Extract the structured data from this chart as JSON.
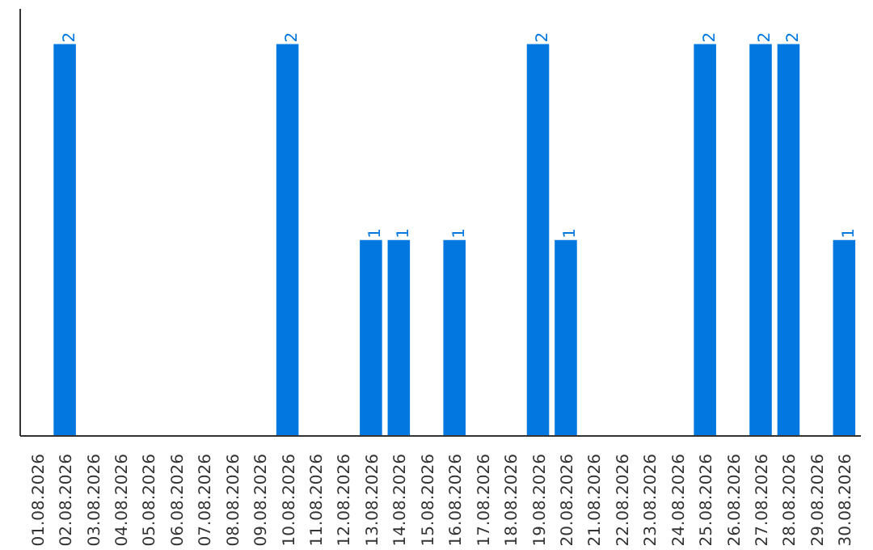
{
  "chart_data": {
    "type": "bar",
    "categories": [
      "01.08.2026",
      "02.08.2026",
      "03.08.2026",
      "04.08.2026",
      "05.08.2026",
      "06.08.2026",
      "07.08.2026",
      "08.08.2026",
      "09.08.2026",
      "10.08.2026",
      "11.08.2026",
      "12.08.2026",
      "13.08.2026",
      "14.08.2026",
      "15.08.2026",
      "16.08.2026",
      "17.08.2026",
      "18.08.2026",
      "19.08.2026",
      "20.08.2026",
      "21.08.2026",
      "22.08.2026",
      "23.08.2026",
      "24.08.2026",
      "25.08.2026",
      "26.08.2026",
      "27.08.2026",
      "28.08.2026",
      "29.08.2026",
      "30.08.2026"
    ],
    "values": [
      0,
      2,
      0,
      0,
      0,
      0,
      0,
      0,
      0,
      2,
      0,
      0,
      1,
      1,
      0,
      1,
      0,
      0,
      2,
      1,
      0,
      0,
      0,
      0,
      2,
      0,
      2,
      2,
      0,
      1
    ],
    "value_labels": [
      null,
      "2",
      null,
      null,
      null,
      null,
      null,
      null,
      null,
      "2",
      null,
      null,
      "1",
      "1",
      null,
      "1",
      null,
      null,
      "2",
      "1",
      null,
      null,
      null,
      null,
      "2",
      null,
      "2",
      "2",
      null,
      "1"
    ],
    "color": "#0078e0",
    "tick_labels": "x",
    "grid": false
  }
}
